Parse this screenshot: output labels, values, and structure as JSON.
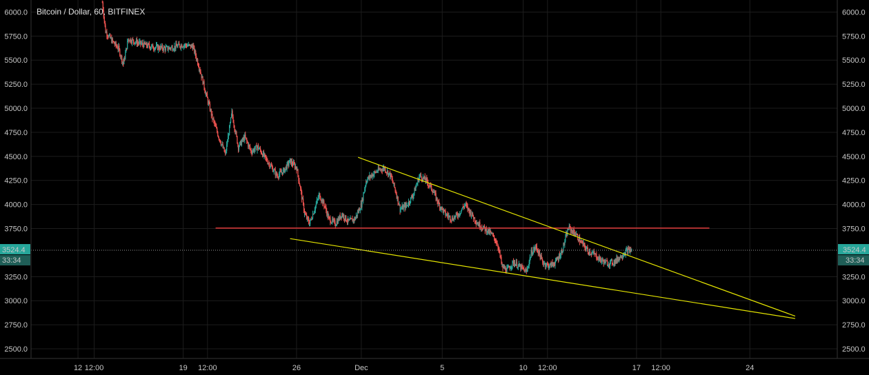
{
  "chart_data": {
    "type": "candlestick",
    "title": "Bitcoin / Dollar, 60, BITFINEX",
    "ylim": [
      2400,
      6125
    ],
    "y_ticks": [
      "6000.0",
      "5750.0",
      "5500.0",
      "5250.0",
      "5000.0",
      "4750.0",
      "4500.0",
      "4250.0",
      "4000.0",
      "3750.0",
      "3524.4",
      "3250.0",
      "3000.0",
      "2750.0",
      "2500.0"
    ],
    "y_tick_values": [
      6000,
      5750,
      5500,
      5250,
      5000,
      4750,
      4500,
      4250,
      4000,
      3750,
      3250,
      3000,
      2750,
      2500
    ],
    "x_ticks": [
      {
        "label": "12",
        "day": 12.5
      },
      {
        "label": "12:00",
        "day": 13.5
      },
      {
        "label": "19",
        "day": 19
      },
      {
        "label": "12:00",
        "day": 20.5
      },
      {
        "label": "26",
        "day": 26
      },
      {
        "label": "Dec",
        "day": 30
      },
      {
        "label": "5",
        "day": 35
      },
      {
        "label": "10",
        "day": 40
      },
      {
        "label": "12:00",
        "day": 41.5
      },
      {
        "label": "17",
        "day": 47
      },
      {
        "label": "12:00",
        "day": 48.5
      },
      {
        "label": "24",
        "day": 54
      }
    ],
    "x_range_days": [
      9.6,
      59.4
    ],
    "last_price": "3524.4",
    "last_price_value": 3524.4,
    "countdown": "33:34",
    "price_path": [
      [
        14.0,
        6100
      ],
      [
        14.2,
        5800
      ],
      [
        14.6,
        5700
      ],
      [
        15.0,
        5620
      ],
      [
        15.3,
        5460
      ],
      [
        15.6,
        5720
      ],
      [
        16.2,
        5680
      ],
      [
        17,
        5640
      ],
      [
        18,
        5620
      ],
      [
        19,
        5660
      ],
      [
        19.6,
        5640
      ],
      [
        20.0,
        5420
      ],
      [
        20.4,
        5150
      ],
      [
        20.8,
        4900
      ],
      [
        21.2,
        4700
      ],
      [
        21.6,
        4520
      ],
      [
        22.0,
        4950
      ],
      [
        22.4,
        4600
      ],
      [
        22.8,
        4700
      ],
      [
        23.2,
        4550
      ],
      [
        23.6,
        4600
      ],
      [
        24.0,
        4500
      ],
      [
        24.4,
        4400
      ],
      [
        24.8,
        4300
      ],
      [
        25.2,
        4350
      ],
      [
        25.6,
        4450
      ],
      [
        26.0,
        4380
      ],
      [
        26.2,
        4200
      ],
      [
        26.5,
        3900
      ],
      [
        26.8,
        3800
      ],
      [
        27.0,
        3900
      ],
      [
        27.4,
        4100
      ],
      [
        27.7,
        4000
      ],
      [
        28.0,
        3850
      ],
      [
        28.4,
        3800
      ],
      [
        28.8,
        3900
      ],
      [
        29.2,
        3820
      ],
      [
        29.6,
        3850
      ],
      [
        30.0,
        4000
      ],
      [
        30.3,
        4250
      ],
      [
        30.6,
        4300
      ],
      [
        31.0,
        4350
      ],
      [
        31.4,
        4380
      ],
      [
        31.8,
        4300
      ],
      [
        32.1,
        4150
      ],
      [
        32.4,
        3950
      ],
      [
        32.8,
        3990
      ],
      [
        33.2,
        4100
      ],
      [
        33.6,
        4300
      ],
      [
        34.0,
        4250
      ],
      [
        34.4,
        4150
      ],
      [
        34.8,
        4000
      ],
      [
        35.2,
        3900
      ],
      [
        35.6,
        3850
      ],
      [
        36.0,
        3900
      ],
      [
        36.4,
        4000
      ],
      [
        36.8,
        3900
      ],
      [
        37.2,
        3800
      ],
      [
        37.6,
        3750
      ],
      [
        38.0,
        3700
      ],
      [
        38.4,
        3600
      ],
      [
        38.7,
        3350
      ],
      [
        39.0,
        3320
      ],
      [
        39.4,
        3400
      ],
      [
        39.8,
        3350
      ],
      [
        40.2,
        3300
      ],
      [
        40.5,
        3500
      ],
      [
        40.8,
        3560
      ],
      [
        41.2,
        3400
      ],
      [
        41.6,
        3360
      ],
      [
        42.0,
        3400
      ],
      [
        42.4,
        3520
      ],
      [
        42.8,
        3760
      ],
      [
        43.2,
        3700
      ],
      [
        43.6,
        3600
      ],
      [
        44.0,
        3520
      ],
      [
        44.4,
        3480
      ],
      [
        44.8,
        3420
      ],
      [
        45.2,
        3390
      ],
      [
        45.6,
        3400
      ],
      [
        46.0,
        3460
      ],
      [
        46.4,
        3520
      ],
      [
        46.7,
        3524
      ]
    ],
    "annotations": {
      "horizontal_line": {
        "value": 3755,
        "from_day": 21.0,
        "to_day": 51.5,
        "color": "#e0393a"
      },
      "upper_trendline": {
        "from": [
          29.8,
          4490
        ],
        "to": [
          56.8,
          2840
        ],
        "color": "#e6e600"
      },
      "lower_trendline": {
        "from": [
          25.6,
          3645
        ],
        "to": [
          56.8,
          2815
        ],
        "color": "#e6e600"
      }
    },
    "colors": {
      "up": "#26a69a",
      "down": "#ef5350",
      "grid": "#1d1d1d",
      "price_line": "#9a9a9a",
      "badge": "#26a69a"
    }
  }
}
